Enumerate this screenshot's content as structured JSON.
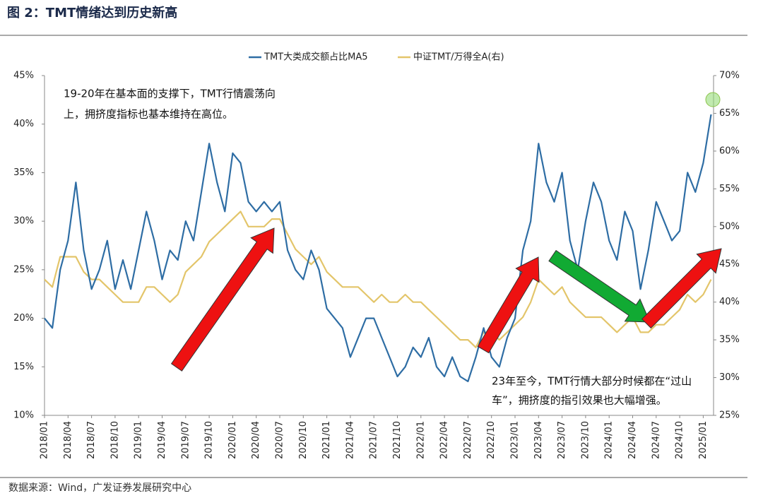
{
  "chart_data": {
    "type": "line",
    "title": "图 2：TMT情绪达到历史新高",
    "source": "数据来源：Wind，广发证券发展研究中心",
    "annotations": [
      "19-20年在基本面的支撑下，TMT行情震荡向",
      "上，拥挤度指标也基本维持在高位。",
      "23年至今，TMT行情大部分时候都在“过山",
      "车”，拥挤度的指引效果也大幅增强。"
    ],
    "categories": [
      "2018/01",
      null,
      null,
      "2018/04",
      null,
      null,
      "2018/07",
      null,
      null,
      "2018/10",
      null,
      null,
      "2019/01",
      null,
      null,
      "2019/04",
      null,
      null,
      "2019/07",
      null,
      null,
      "2019/10",
      null,
      null,
      "2020/01",
      null,
      null,
      "2020/04",
      null,
      null,
      "2020/07",
      null,
      null,
      "2020/10",
      null,
      null,
      "2021/01",
      null,
      null,
      "2021/04",
      null,
      null,
      "2021/07",
      null,
      null,
      "2021/10",
      null,
      null,
      "2022/01",
      null,
      null,
      "2022/04",
      null,
      null,
      "2022/07",
      null,
      null,
      "2022/10",
      null,
      null,
      "2023/01",
      null,
      null,
      "2023/04",
      null,
      null,
      "2023/07",
      null,
      null,
      "2023/10",
      null,
      null,
      "2024/01",
      null,
      null,
      "2024/04",
      null,
      null,
      "2024/07",
      null,
      null,
      "2024/10",
      null,
      null,
      "2025/01",
      null
    ],
    "series": [
      {
        "name": "TMT大类成交额占比MA5",
        "color": "#2e6da4",
        "axis": "y",
        "values": [
          20,
          19,
          25,
          28,
          34,
          27,
          23,
          25,
          28,
          23,
          26,
          23,
          27,
          31,
          28,
          24,
          27,
          26,
          30,
          28,
          33,
          38,
          34,
          31,
          37,
          36,
          32,
          31,
          32,
          31,
          32,
          27,
          25,
          24,
          27,
          25,
          21,
          20,
          19,
          16,
          18,
          20,
          20,
          18,
          16,
          14,
          15,
          17,
          16,
          18,
          15,
          14,
          16,
          14,
          13.5,
          16,
          19,
          16,
          15,
          18,
          20,
          27,
          30,
          38,
          34,
          32,
          35,
          28,
          25,
          30,
          34,
          32,
          28,
          26,
          31,
          29,
          23,
          27,
          32,
          30,
          28,
          29,
          35,
          33,
          36,
          41
        ]
      },
      {
        "name": "中证TMT/万得全A(右)",
        "color": "#e3c56a",
        "axis": "y2",
        "values": [
          43,
          42,
          46,
          46,
          46,
          44,
          43,
          43,
          42,
          41,
          40,
          40,
          40,
          42,
          42,
          41,
          40,
          41,
          44,
          45,
          46,
          48,
          49,
          50,
          51,
          52,
          50,
          50,
          50,
          51,
          51,
          49,
          47,
          46,
          45,
          46,
          44,
          43,
          42,
          42,
          42,
          41,
          40,
          41,
          40,
          40,
          41,
          40,
          40,
          39,
          38,
          37,
          36,
          35,
          35,
          34,
          36,
          36,
          35,
          36,
          37,
          38,
          40,
          43,
          42,
          41,
          42,
          40,
          39,
          38,
          38,
          38,
          37,
          36,
          37,
          38,
          36,
          36,
          37,
          37,
          38,
          39,
          41,
          40,
          41,
          43
        ]
      }
    ],
    "ylim": [
      10,
      45
    ],
    "yticks": [
      {
        "value": 10,
        "label": "10%"
      },
      {
        "value": 15,
        "label": "15%"
      },
      {
        "value": 20,
        "label": "20%"
      },
      {
        "value": 25,
        "label": "25%"
      },
      {
        "value": 30,
        "label": "30%"
      },
      {
        "value": 35,
        "label": "35%"
      },
      {
        "value": 40,
        "label": "40%"
      },
      {
        "value": 45,
        "label": "45%"
      }
    ],
    "y2lim": [
      25,
      70
    ],
    "y2ticks": [
      {
        "value": 25,
        "label": "25%"
      },
      {
        "value": 30,
        "label": "30%"
      },
      {
        "value": 35,
        "label": "35%"
      },
      {
        "value": 40,
        "label": "40%"
      },
      {
        "value": 45,
        "label": "45%"
      },
      {
        "value": 50,
        "label": "50%"
      },
      {
        "value": 55,
        "label": "55%"
      },
      {
        "value": 60,
        "label": "60%"
      },
      {
        "value": 65,
        "label": "65%"
      },
      {
        "value": 70,
        "label": "70%"
      }
    ],
    "legend": "top",
    "grid": false
  }
}
